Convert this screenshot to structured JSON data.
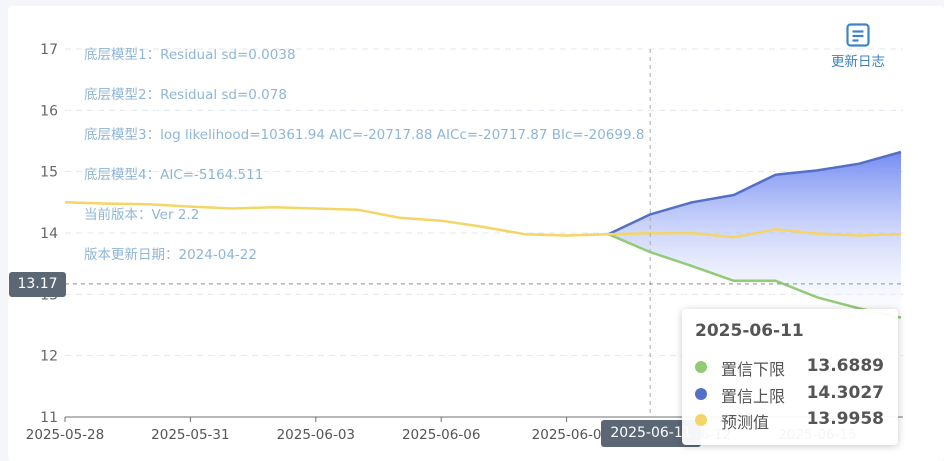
{
  "chart_data": {
    "type": "line",
    "x": [
      "2025-05-28",
      "2025-05-29",
      "2025-05-30",
      "2025-05-31",
      "2025-06-01",
      "2025-06-02",
      "2025-06-03",
      "2025-06-04",
      "2025-06-05",
      "2025-06-06",
      "2025-06-07",
      "2025-06-08",
      "2025-06-09",
      "2025-06-10",
      "2025-06-11",
      "2025-06-12",
      "2025-06-13",
      "2025-06-14",
      "2025-06-15",
      "2025-06-16",
      "2025-06-17"
    ],
    "x_tick_labels": [
      "2025-05-28",
      "2025-05-31",
      "2025-06-03",
      "2025-06-06",
      "2025-06-0",
      "2025-06-12",
      "2025-06-15"
    ],
    "y_ticks": [
      11,
      12,
      13,
      14,
      15,
      16,
      17
    ],
    "ylim": [
      11,
      17
    ],
    "series": [
      {
        "name": "预测值",
        "color": "#f5d565",
        "values": [
          14.5,
          14.48,
          14.47,
          14.43,
          14.4,
          14.42,
          14.4,
          14.38,
          14.25,
          14.2,
          14.1,
          13.98,
          13.96,
          13.98,
          13.9958,
          14.0,
          13.93,
          14.06,
          13.99,
          13.96,
          13.98
        ]
      },
      {
        "name": "置信下限",
        "color": "#91cc75",
        "values": [
          null,
          null,
          null,
          null,
          null,
          null,
          null,
          null,
          null,
          null,
          null,
          null,
          null,
          13.98,
          13.6889,
          13.46,
          13.22,
          13.22,
          12.95,
          12.77,
          12.62
        ]
      },
      {
        "name": "置信上限",
        "color": "#5470c6",
        "values": [
          null,
          null,
          null,
          null,
          null,
          null,
          null,
          null,
          null,
          null,
          null,
          null,
          null,
          13.98,
          14.3027,
          14.5,
          14.62,
          14.95,
          15.02,
          15.13,
          15.32
        ]
      }
    ],
    "grid": true
  },
  "annotations": [
    "底层模型1：Residual sd=0.0038",
    "底层模型2：Residual sd=0.078",
    "底层模型3：log likelihood=10361.94 AIC=-20717.88 AICc=-20717.87 BIc=-20699.8",
    "底层模型4：AIC=-5164.511",
    "当前版本：Ver 2.2",
    "版本更新日期：2024-04-22"
  ],
  "update_log": {
    "label": "更新日志",
    "icon": "document-icon"
  },
  "cursor": {
    "y_label": "13.17",
    "x_label": "2025-06-11"
  },
  "tooltip": {
    "date": "2025-06-11",
    "rows": [
      {
        "name": "置信下限",
        "value": "13.6889",
        "color": "#91cc75"
      },
      {
        "name": "置信上限",
        "value": "14.3027",
        "color": "#5470c6"
      },
      {
        "name": "预测值",
        "value": "13.9958",
        "color": "#f5d565"
      }
    ]
  }
}
